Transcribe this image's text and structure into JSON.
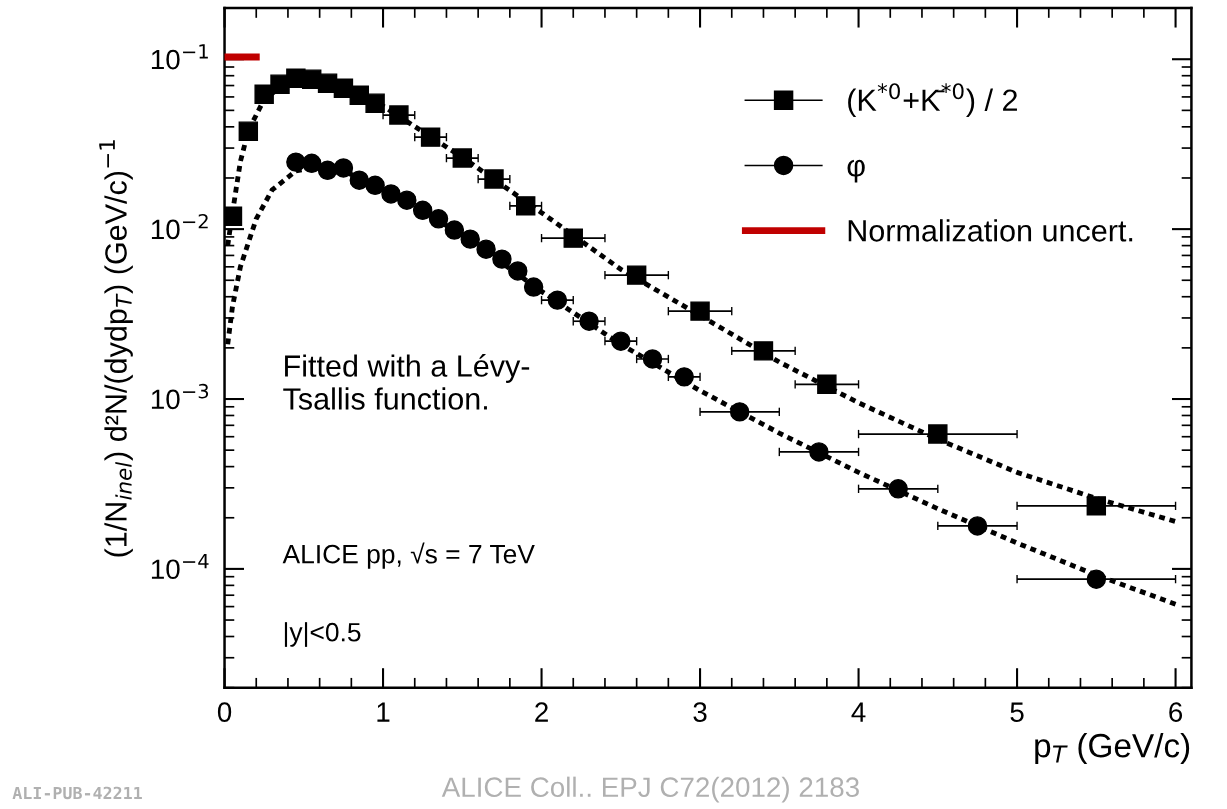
{
  "chart_data": {
    "type": "scatter",
    "xlabel": "p$_{T}$ (GeV/c)",
    "ylabel": "(1/N$_{inel}$) d²N/(dydp$_{T}$) (GeV/c)$^{−1}$",
    "log": "y",
    "xlim": [
      0,
      6.1
    ],
    "ylim": [
      2e-05,
      0.2
    ],
    "xticks": [
      0,
      1,
      2,
      3,
      4,
      5,
      6
    ],
    "yticks": [
      {
        "value": 0.0001,
        "label": "10$^{−4}$"
      },
      {
        "value": 0.001,
        "label": "10$^{−3}$"
      },
      {
        "value": 0.01,
        "label": "10$^{−2}$"
      },
      {
        "value": 0.1,
        "label": "10$^{−1}$"
      }
    ],
    "grid": false,
    "legend": "top right",
    "series": [
      {
        "name": "(K$^{*0}$+K̄$^{*0}$) / 2",
        "marker": "square",
        "color": "#000000",
        "x": [
          0.05,
          0.15,
          0.25,
          0.35,
          0.45,
          0.55,
          0.65,
          0.75,
          0.85,
          0.95,
          1.1,
          1.3,
          1.5,
          1.7,
          1.9,
          2.2,
          2.6,
          3.0,
          3.4,
          3.8,
          4.5,
          5.5
        ],
        "values": [
          0.0119,
          0.0377,
          0.0622,
          0.0713,
          0.0773,
          0.0763,
          0.0723,
          0.0675,
          0.0614,
          0.0551,
          0.0469,
          0.0348,
          0.0262,
          0.0197,
          0.0137,
          0.00885,
          0.00536,
          0.00329,
          0.00192,
          0.00122,
          0.000622,
          0.000235
        ],
        "xerrors": [
          0.05,
          0.05,
          0.05,
          0.05,
          0.05,
          0.05,
          0.05,
          0.05,
          0.05,
          0.05,
          0.1,
          0.1,
          0.1,
          0.1,
          0.1,
          0.2,
          0.2,
          0.2,
          0.2,
          0.2,
          0.5,
          0.5
        ]
      },
      {
        "name": "φ",
        "marker": "circle",
        "color": "#000000",
        "x": [
          0.45,
          0.55,
          0.65,
          0.75,
          0.85,
          0.95,
          1.05,
          1.15,
          1.25,
          1.35,
          1.45,
          1.55,
          1.65,
          1.75,
          1.85,
          1.95,
          2.1,
          2.3,
          2.5,
          2.7,
          2.9,
          3.25,
          3.75,
          4.25,
          4.75,
          5.5
        ],
        "values": [
          0.0248,
          0.0244,
          0.0222,
          0.0229,
          0.0194,
          0.0181,
          0.0161,
          0.0148,
          0.0129,
          0.0115,
          0.00987,
          0.00873,
          0.00762,
          0.00666,
          0.00567,
          0.00456,
          0.00382,
          0.00287,
          0.00219,
          0.00172,
          0.00135,
          0.00084,
          0.000488,
          0.000296,
          0.000179,
          8.7e-05
        ],
        "xerrors": [
          0.05,
          0.05,
          0.05,
          0.05,
          0.05,
          0.05,
          0.05,
          0.05,
          0.05,
          0.05,
          0.05,
          0.05,
          0.05,
          0.05,
          0.05,
          0.05,
          0.1,
          0.1,
          0.1,
          0.1,
          0.1,
          0.25,
          0.25,
          0.25,
          0.25,
          0.5
        ]
      },
      {
        "name": "Normalization uncert.",
        "type": "line",
        "marker": "none",
        "line_style": "solid",
        "color": "#c00000",
        "x": [
          0,
          0.2
        ],
        "values": [
          0.103,
          0.103
        ]
      },
      {
        "type": "line",
        "marker": "none",
        "line_style": "dotted",
        "color": "#000000",
        "x": [
          0.02,
          0.05,
          0.1,
          0.15,
          0.25,
          0.4,
          0.6,
          0.8,
          1.0,
          1.5,
          2.0,
          2.5,
          3.0,
          3.5,
          4.0,
          4.5,
          5.0,
          5.5,
          6.0
        ],
        "values": [
          0.008,
          0.0125,
          0.025,
          0.038,
          0.058,
          0.074,
          0.076,
          0.066,
          0.053,
          0.0265,
          0.0125,
          0.0058,
          0.0031,
          0.00165,
          0.00095,
          0.00058,
          0.00037,
          0.00026,
          0.00019
        ]
      },
      {
        "type": "line",
        "marker": "none",
        "line_style": "dotted",
        "color": "#000000",
        "x": [
          0.02,
          0.05,
          0.1,
          0.2,
          0.3,
          0.45,
          0.6,
          0.8,
          1.0,
          1.5,
          2.0,
          2.5,
          3.0,
          3.5,
          4.0,
          4.5,
          5.0,
          5.5,
          6.0
        ],
        "values": [
          0.0021,
          0.0035,
          0.006,
          0.0115,
          0.017,
          0.022,
          0.0235,
          0.021,
          0.017,
          0.0093,
          0.0043,
          0.0021,
          0.00112,
          0.00063,
          0.00037,
          0.000226,
          0.000142,
          9.2e-05,
          6.2e-05
        ]
      }
    ],
    "annotations": [
      "Fitted with a Lévy-\nTsallis function.",
      "ALICE pp, √s = 7 TeV",
      "|y|<0.5",
      "ALI-PUB-42211",
      "ALICE Coll.. EPJ C72(2012) 2183"
    ]
  }
}
